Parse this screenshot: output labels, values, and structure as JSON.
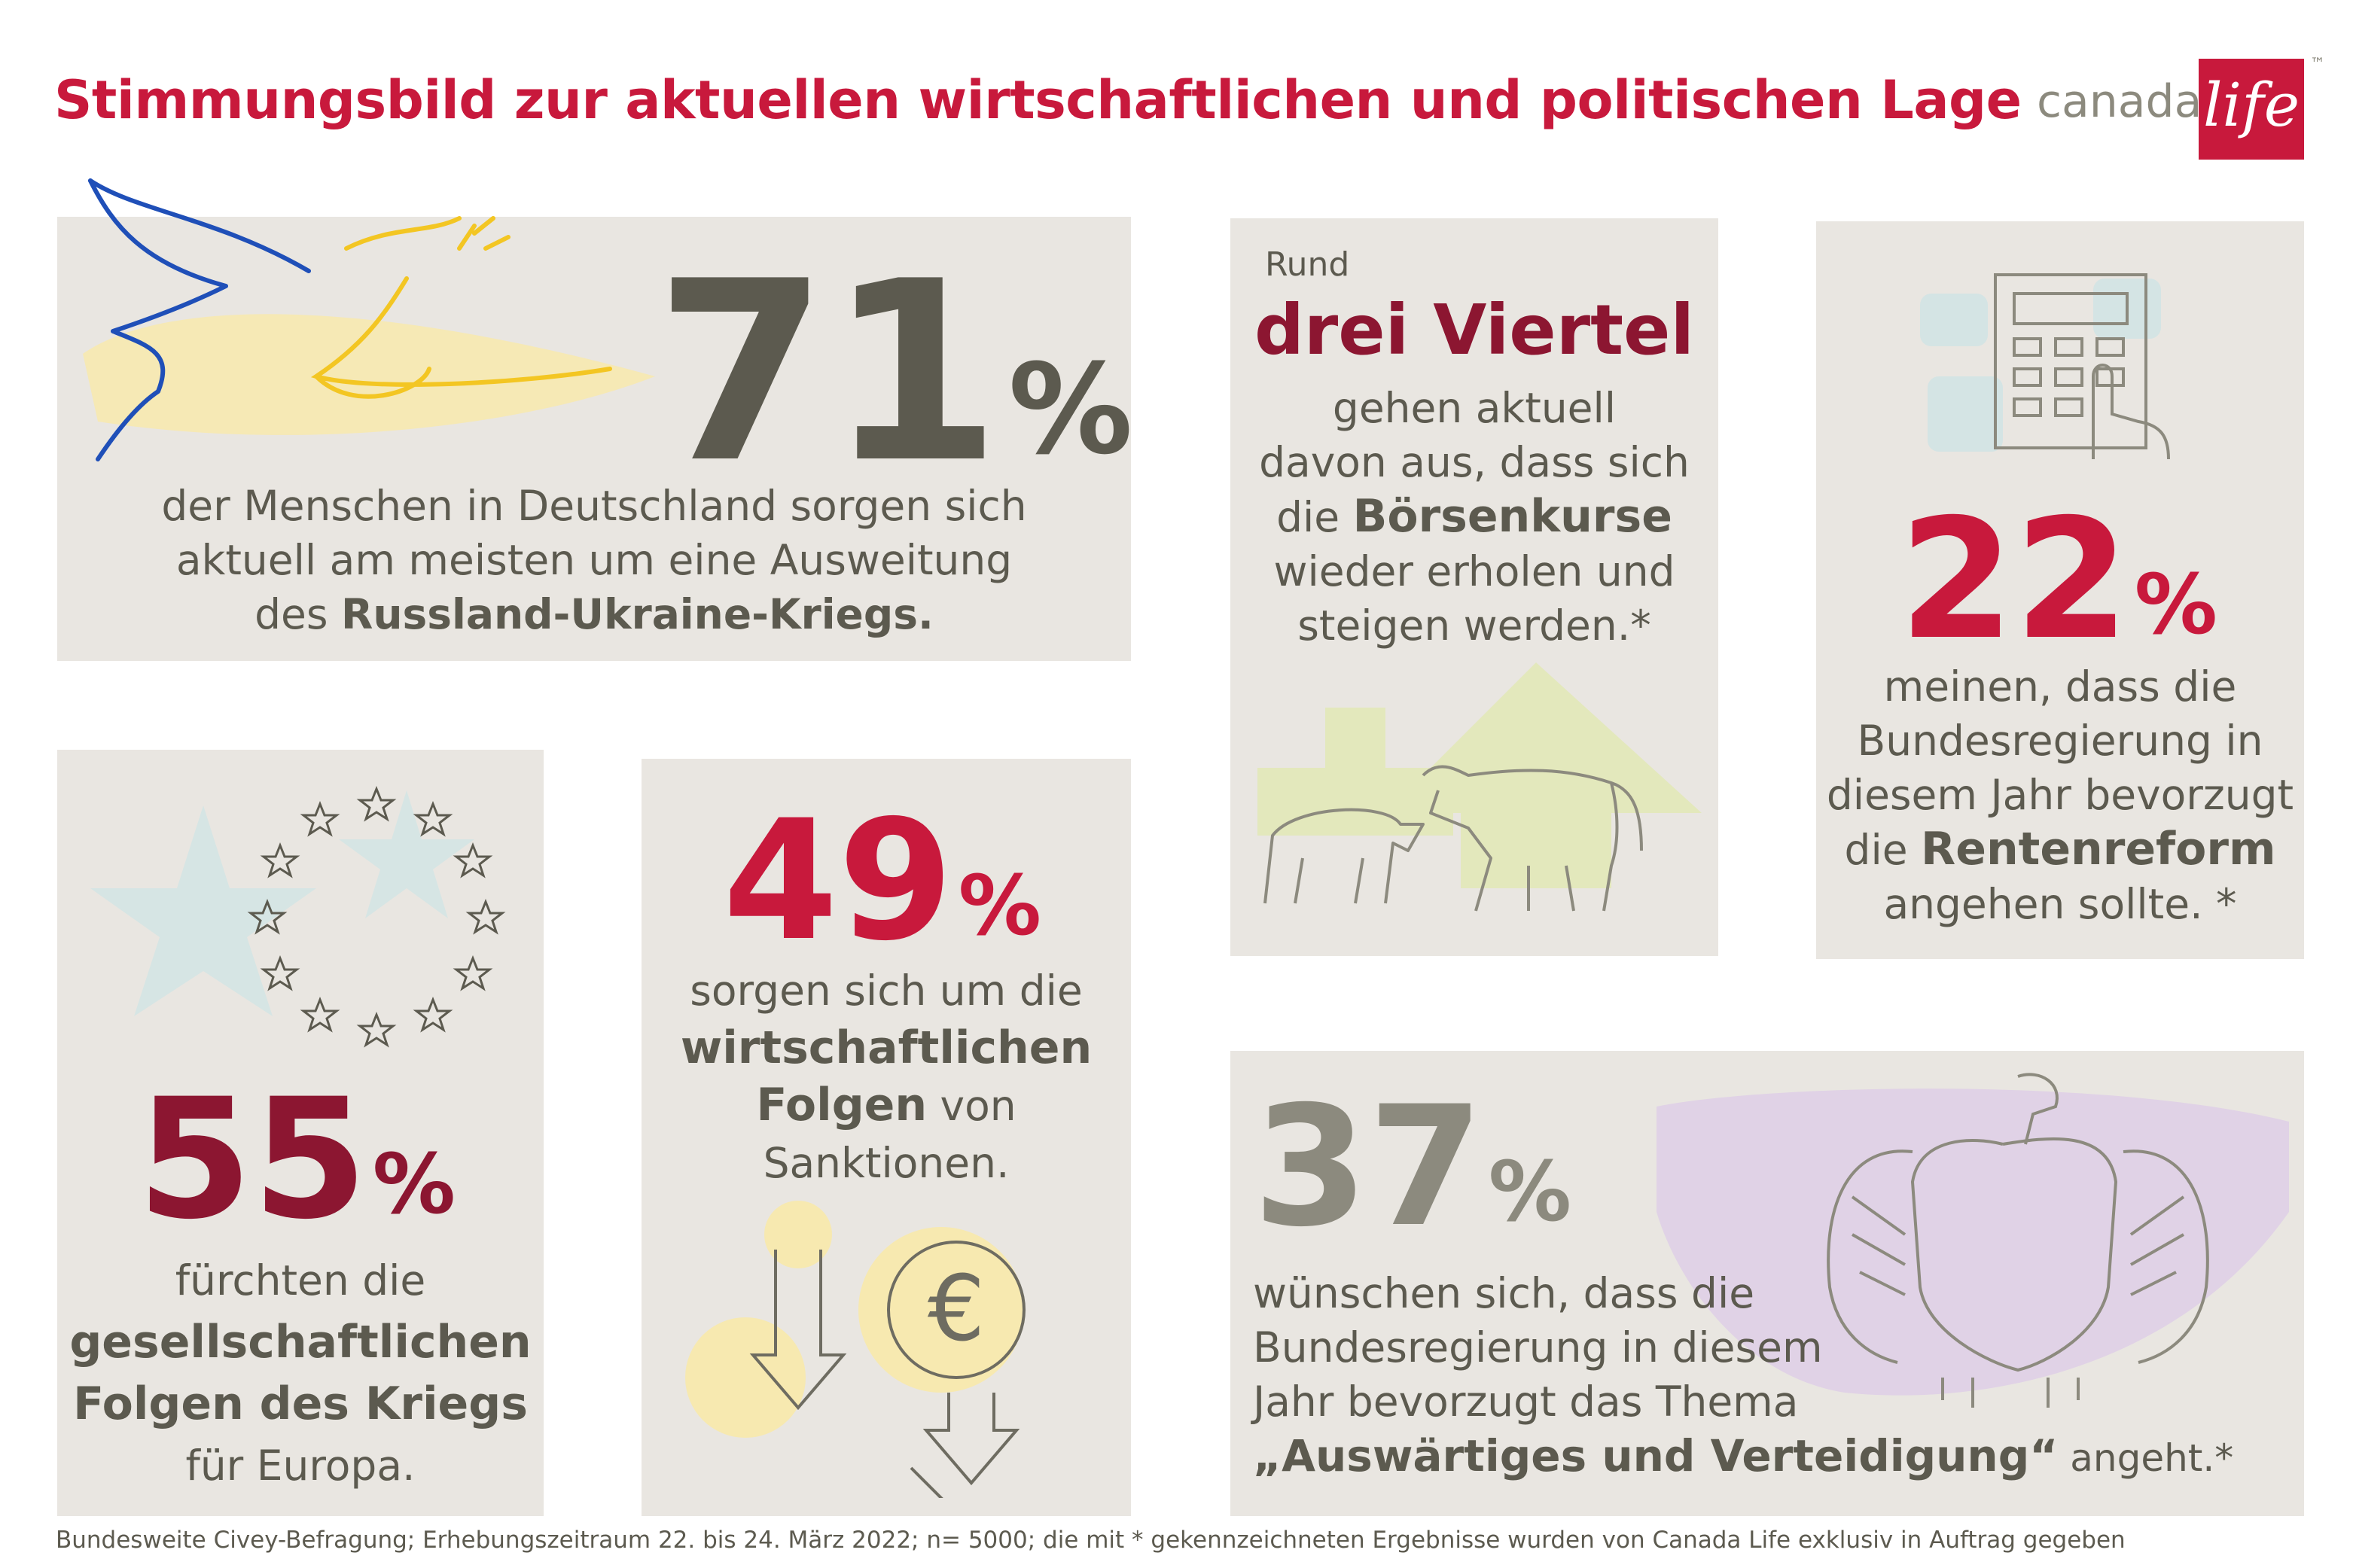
{
  "title": "Stimmungsbild zur aktuellen wirtschaftlichen und politischen Lage",
  "logo": {
    "text": "canada",
    "box_text": "life",
    "tm": "™"
  },
  "colors": {
    "accent_red": "#c8193c",
    "dark_red": "#8c1631",
    "olive": "#5c5a4f",
    "taupe": "#8c8a7e",
    "panel": "#e9e6e1"
  },
  "card_71": {
    "value": "71",
    "pct": "%",
    "line1": "der Menschen in Deutschland sorgen sich",
    "line2": "aktuell am meisten um eine Ausweitung",
    "line3_pre": "des ",
    "line3_bold": "Russland-Ukraine-Kriegs."
  },
  "card_55": {
    "value": "55",
    "pct": "%",
    "line1": "fürchten die",
    "bold1": "gesellschaftlichen",
    "bold2": "Folgen des Kriegs",
    "line4": "für Europa."
  },
  "card_49": {
    "value": "49",
    "pct": "%",
    "line1": "sorgen sich um die",
    "bold1": "wirtschaftlichen",
    "bold2": "Folgen",
    "line3_post": " von",
    "line4": "Sanktionen.",
    "euro": "€"
  },
  "card_three_quarters": {
    "intro": "Rund",
    "headline": "drei Viertel",
    "line1": "gehen aktuell",
    "line2": "davon aus, dass sich",
    "line3_pre": "die ",
    "line3_bold": "Börsenkurse",
    "line4": "wieder erholen und",
    "line5": "steigen werden.*"
  },
  "card_22": {
    "value": "22",
    "pct": "%",
    "line1": "meinen, dass die",
    "line2": "Bundesregierung in",
    "line3": "diesem Jahr bevorzugt",
    "line4_pre": "die ",
    "line4_bold": "Rentenreform",
    "line5": "angehen sollte. *"
  },
  "card_37": {
    "value": "37",
    "pct": "%",
    "line1": "wünschen sich, dass die",
    "line2": "Bundesregierung in diesem",
    "line3": "Jahr bevorzugt das Thema",
    "line4_bold": "„Auswärtiges und Verteidigung“",
    "line4_post": " angeht.*"
  },
  "footer": "Bundesweite Civey-Befragung; Erhebungszeitraum 22. bis 24. März 2022; n= 5000; die mit * gekennzeichneten Ergebnisse wurden von Canada Life exklusiv in Auftrag gegeben"
}
